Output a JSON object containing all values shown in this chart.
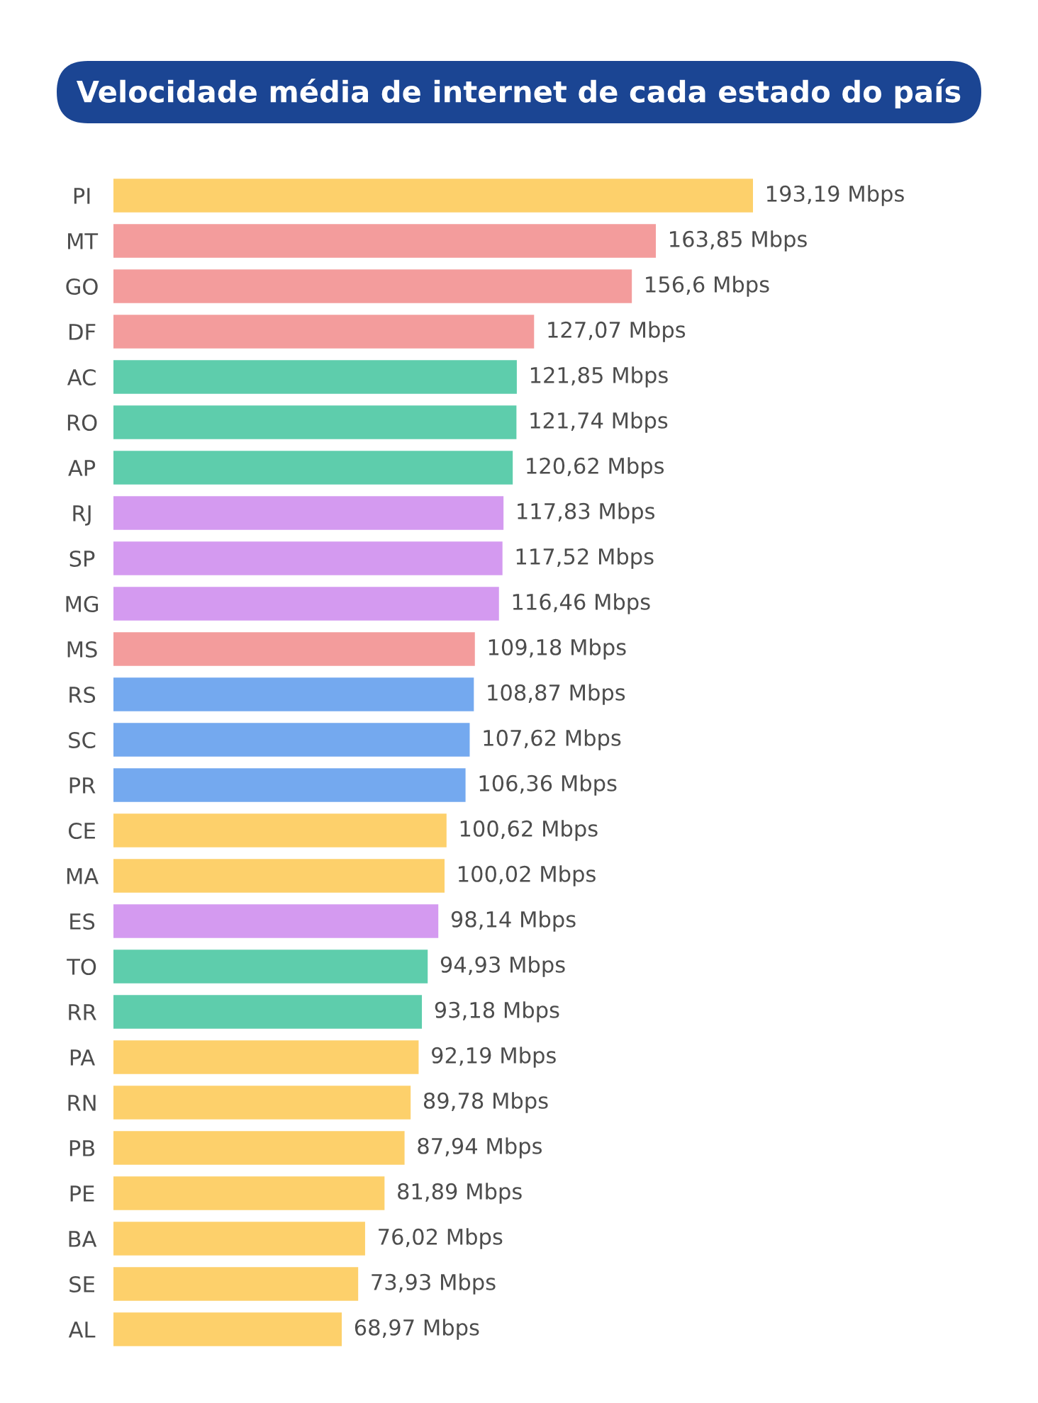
{
  "chart_data": {
    "type": "bar",
    "orientation": "horizontal",
    "title": "Velocidade média de internet de cada estado do país",
    "categories": [
      "PI",
      "MT",
      "GO",
      "DF",
      "AC",
      "RO",
      "AP",
      "RJ",
      "SP",
      "MG",
      "MS",
      "RS",
      "SC",
      "PR",
      "CE",
      "MA",
      "ES",
      "TO",
      "RR",
      "PA",
      "RN",
      "PB",
      "PE",
      "BA",
      "SE",
      "AL"
    ],
    "values": [
      193.19,
      163.85,
      156.6,
      127.07,
      121.85,
      121.74,
      120.62,
      117.83,
      117.52,
      116.46,
      109.18,
      108.87,
      107.62,
      106.36,
      100.62,
      100.02,
      98.14,
      94.93,
      93.18,
      92.19,
      89.78,
      87.94,
      81.89,
      76.02,
      73.93,
      68.97
    ],
    "value_labels": [
      "193,19 Mbps",
      "163,85 Mbps",
      "156,6 Mbps",
      "127,07 Mbps",
      "121,85 Mbps",
      "121,74 Mbps",
      "120,62 Mbps",
      "117,83 Mbps",
      "117,52 Mbps",
      "116,46 Mbps",
      "109,18 Mbps",
      "108,87 Mbps",
      "107,62 Mbps",
      "106,36 Mbps",
      "100,62 Mbps",
      "100,02 Mbps",
      "98,14 Mbps",
      "94,93 Mbps",
      "93,18 Mbps",
      "92,19 Mbps",
      "89,78 Mbps",
      "87,94 Mbps",
      "81,89 Mbps",
      "76,02 Mbps",
      "73,93 Mbps",
      "68,97 Mbps"
    ],
    "colors": [
      "#fdd06b",
      "#f39c9c",
      "#f39c9c",
      "#f39c9c",
      "#5ecdac",
      "#5ecdac",
      "#5ecdac",
      "#d49af0",
      "#d49af0",
      "#d49af0",
      "#f39c9c",
      "#74a9ef",
      "#74a9ef",
      "#74a9ef",
      "#fdd06b",
      "#fdd06b",
      "#d49af0",
      "#5ecdac",
      "#5ecdac",
      "#fdd06b",
      "#fdd06b",
      "#fdd06b",
      "#fdd06b",
      "#fdd06b",
      "#fdd06b",
      "#fdd06b"
    ],
    "tick_labels": "y"
  }
}
